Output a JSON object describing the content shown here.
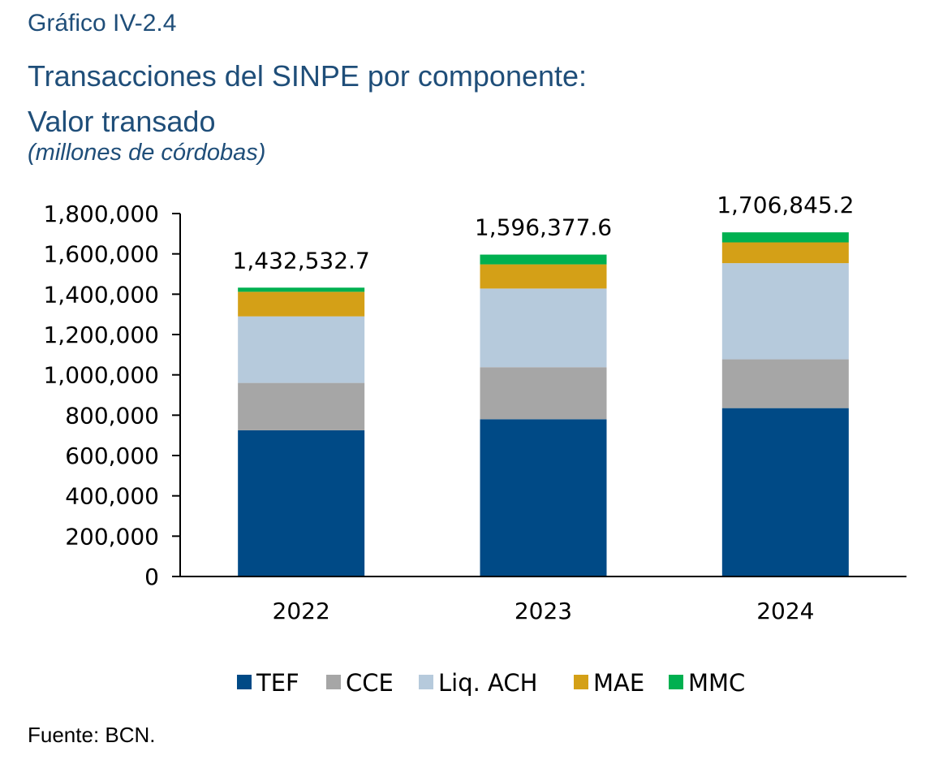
{
  "header": {
    "chart_number": "Gráfico IV-2.4",
    "title_line1": "Transacciones del SINPE por componente:",
    "title_line2": "Valor transado",
    "unit": "(millones de córdobas)"
  },
  "source": "Fuente: BCN.",
  "chart_data": {
    "type": "bar",
    "stacked": true,
    "categories": [
      "2022",
      "2023",
      "2024"
    ],
    "series": [
      {
        "name": "TEF",
        "color": "#004a86",
        "values": [
          725000,
          780000,
          835000
        ]
      },
      {
        "name": "CCE",
        "color": "#a6a6a6",
        "values": [
          235000,
          258000,
          242000
        ]
      },
      {
        "name": "Liq. ACH",
        "color": "#b6cadc",
        "values": [
          330000,
          390000,
          477000
        ]
      },
      {
        "name": "MAE",
        "color": "#d4a017",
        "values": [
          122000,
          120000,
          103000
        ]
      },
      {
        "name": "MMC",
        "color": "#00b050",
        "values": [
          20532.7,
          48377.6,
          49845.2
        ]
      }
    ],
    "totals": [
      1432532.7,
      1596377.6,
      1706845.2
    ],
    "total_labels": [
      "1,432,532.7",
      "1,596,377.6",
      "1,706,845.2"
    ],
    "ylim": [
      0,
      1800000
    ],
    "yticks": [
      0,
      200000,
      400000,
      600000,
      800000,
      1000000,
      1200000,
      1400000,
      1600000,
      1800000
    ],
    "ytick_labels": [
      "0",
      "200,000",
      "400,000",
      "600,000",
      "800,000",
      "1,000,000",
      "1,200,000",
      "1,400,000",
      "1,600,000",
      "1,800,000"
    ],
    "legend_position": "bottom",
    "grid": false
  }
}
